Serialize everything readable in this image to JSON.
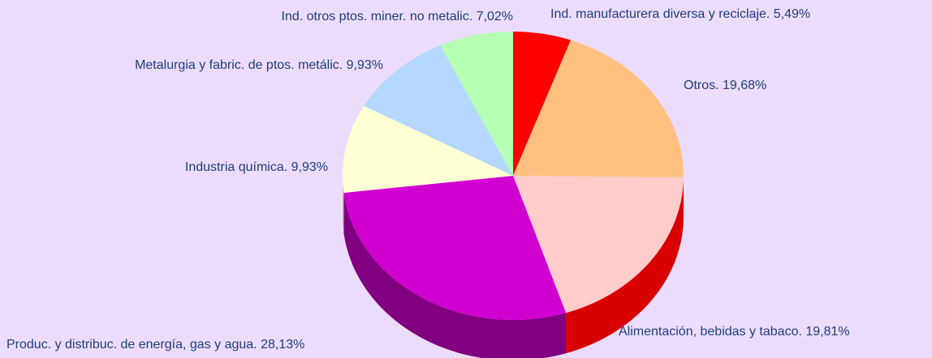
{
  "chart_data": {
    "type": "pie3d",
    "values": [
      5.49,
      19.68,
      19.81,
      28.13,
      9.93,
      9.93,
      7.02
    ],
    "value_labels": [
      "Ind. manufacturera diversa y reciclaje. 5,49%",
      "Otros. 19,68%",
      "Alimentación, bebidas y tabaco. 19,81%",
      "Produc. y distribuc. de energía, gas y agua. 28,13%",
      "Industria química. 9,93%",
      "Metalurgia y fabric. de ptos. metálic. 9,93%",
      "Ind. otros ptos. miner. no metalic. 7,02%"
    ],
    "colors": [
      "#ff0000",
      "#ffc080",
      "#ffcccc",
      "#d000d0",
      "#ffffd4",
      "#b4d8ff",
      "#b4ffb4"
    ],
    "side_colors": [
      "#b00000",
      "#c08040",
      "#d80000",
      "#800080",
      "#c0c090",
      "#7090c0",
      "#70c070"
    ]
  }
}
